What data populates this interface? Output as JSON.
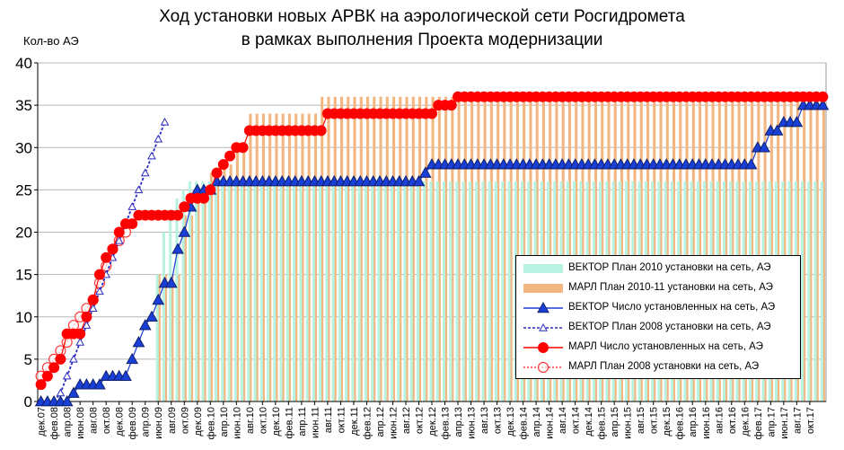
{
  "title": {
    "line1": "Ход установки новых АРВК на аэрологической сети Росгидромета",
    "line2": "в рамках выполнения Проекта модернизации"
  },
  "y_axis_label": "Кол-во АЭ",
  "chart_data": {
    "type": "line",
    "ylim": [
      0,
      40
    ],
    "y_ticks": [
      0,
      5,
      10,
      15,
      20,
      25,
      30,
      35,
      40
    ],
    "grid": "horizontal",
    "legend_position": "bottom-right",
    "x_tick_labels": [
      "дек.07",
      "фев.08",
      "апр.08",
      "июн.08",
      "авг.08",
      "окт.08",
      "дек.08",
      "фев.09",
      "апр.09",
      "июн.09",
      "авг.09",
      "окт.09",
      "дек.09",
      "фев.10",
      "апр.10",
      "июн.10",
      "авг.10",
      "окт.10",
      "дек.10",
      "фев.11",
      "апр.11",
      "июн.11",
      "авг.11",
      "окт.11",
      "дек.11",
      "фев.12",
      "апр.12",
      "июн.12",
      "авг.12",
      "окт.12",
      "дек.12",
      "фев.13",
      "апр.13",
      "июн.13",
      "авг.13",
      "окт.13",
      "дек.13",
      "фев.14",
      "апр.14",
      "июн.14",
      "авг.14",
      "окт.14",
      "дек.14",
      "фев.15",
      "апр.15",
      "июн.15",
      "авг.15",
      "окт.15",
      "дек.15",
      "фев.16",
      "апр.16",
      "июн.16",
      "авг.16",
      "окт.16",
      "дек.16",
      "фев.17",
      "апр.17",
      "июн.17",
      "авг.17",
      "окт.17"
    ],
    "series": [
      {
        "name": "ВЕКТОР План 2010 установки на сеть, АЭ",
        "kind": "bar",
        "color": "#b8f2e0",
        "x": [
          "июн.09",
          "июл.09",
          "авг.09",
          "сен.09",
          "окт.09",
          "ноя.09",
          "дек.09",
          "янв.10",
          "фев.10",
          "мар.10",
          "дек.17"
        ],
        "y": [
          15,
          20,
          22,
          24,
          25,
          26,
          26,
          26,
          26,
          26,
          26
        ]
      },
      {
        "name": "МАРЛ План 2010-11 установки на сеть, АЭ",
        "kind": "bar",
        "color": "#f4b680",
        "x": [
          "июн.09",
          "окт.09",
          "дек.09",
          "фев.10",
          "апр.10",
          "июн.10",
          "авг.10",
          "дек.10",
          "июл.11",
          "апр.12",
          "ноя.12",
          "дек.12",
          "янв.13",
          "дек.17"
        ],
        "y": [
          15,
          22,
          25,
          27,
          28,
          30,
          34,
          34,
          36,
          36,
          36,
          36,
          36,
          36
        ]
      },
      {
        "name": "ВЕКТОР Число установленных на сеть, АЭ",
        "kind": "line",
        "marker": "triangle-filled",
        "color": "#1a3fd6",
        "x": [
          "дек.07",
          "фев.08",
          "апр.08",
          "май.08",
          "июн.08",
          "авг.08",
          "окт.08",
          "дек.08",
          "фев.09",
          "мар.09",
          "апр.09",
          "май.09",
          "июн.09",
          "июл.09",
          "авг.09",
          "сен.09",
          "окт.09",
          "ноя.09",
          "дек.09",
          "янв.10",
          "фев.10",
          "мар.10",
          "окт.12",
          "ноя.12",
          "дек.12",
          "окт.16",
          "ноя.16",
          "дек.16",
          "фев.17",
          "мар.17",
          "апр.17",
          "июн.17",
          "авг.17",
          "сен.17",
          "дек.17"
        ],
        "y": [
          0,
          0,
          0,
          1,
          2,
          2,
          3,
          3,
          5,
          7,
          9,
          10,
          12,
          14,
          14,
          18,
          20,
          23,
          25,
          25,
          25,
          26,
          26,
          27,
          28,
          28,
          28,
          28,
          30,
          30,
          32,
          33,
          33,
          35,
          35
        ]
      },
      {
        "name": "ВЕКТОР План  2008 установки на сеть, АЭ",
        "kind": "line",
        "marker": "triangle-open",
        "color": "#2a2ac0",
        "x": [
          "дек.07",
          "фев.08",
          "мар.08",
          "апр.08",
          "май.08",
          "июн.08",
          "июл.08",
          "авг.08",
          "сен.08",
          "окт.08",
          "ноя.08",
          "дек.08",
          "янв.09",
          "фев.09",
          "мар.09",
          "апр.09",
          "май.09",
          "июн.09",
          "июл.09"
        ],
        "y": [
          0,
          0,
          1,
          3,
          5,
          7,
          9,
          11,
          13,
          15,
          17,
          19,
          21,
          23,
          25,
          27,
          29,
          31,
          33
        ]
      },
      {
        "name": "МАРЛ Число установленных на сеть, АЭ",
        "kind": "line",
        "marker": "circle-filled",
        "color": "#ff0000",
        "x": [
          "дек.07",
          "янв.08",
          "фев.08",
          "мар.08",
          "апр.08",
          "май.08",
          "июн.08",
          "июл.08",
          "авг.08",
          "сен.08",
          "окт.08",
          "ноя.08",
          "дек.08",
          "янв.09",
          "фев.09",
          "мар.09",
          "апр.09",
          "май.09",
          "июн.09",
          "июл.09",
          "авг.09",
          "сен.09",
          "окт.09",
          "ноя.09",
          "дек.09",
          "янв.10",
          "фев.10",
          "мар.10",
          "апр.10",
          "май.10",
          "июн.10",
          "июл.10",
          "авг.10",
          "сен.10",
          "окт.10",
          "июн.11",
          "июл.11",
          "авг.11",
          "сен.11",
          "ноя.12",
          "дек.12",
          "янв.13",
          "фев.13",
          "мар.13",
          "апр.13",
          "дек.17"
        ],
        "y": [
          2,
          3,
          4,
          5,
          8,
          8,
          8,
          10,
          12,
          15,
          17,
          18,
          20,
          21,
          21,
          22,
          22,
          22,
          22,
          22,
          22,
          22,
          23,
          24,
          24,
          24,
          25,
          27,
          28,
          29,
          30,
          30,
          32,
          32,
          32,
          32,
          32,
          34,
          34,
          34,
          34,
          35,
          35,
          35,
          36,
          36
        ]
      },
      {
        "name": "МАРЛ План  2008 установки на сеть, АЭ",
        "kind": "line",
        "marker": "circle-open",
        "color": "#ff3a3a",
        "x": [
          "дек.07",
          "янв.08",
          "фев.08",
          "мар.08",
          "апр.08",
          "май.08",
          "июн.08",
          "июл.08",
          "авг.08",
          "сен.08",
          "окт.08",
          "ноя.08",
          "дек.08",
          "янв.09"
        ],
        "y": [
          3,
          4,
          5,
          6,
          7,
          9,
          10,
          11,
          12,
          14,
          16,
          18,
          19,
          20
        ]
      }
    ]
  }
}
